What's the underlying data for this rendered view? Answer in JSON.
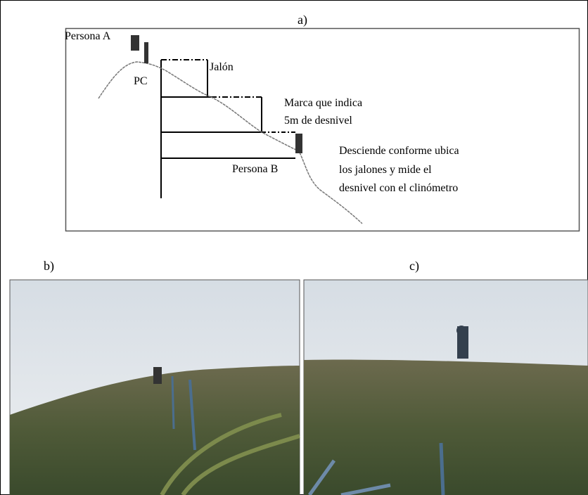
{
  "panel_a": {
    "label": "a)",
    "annotations": [
      "Persona A",
      "PC",
      "Jalón",
      "Marca que indica",
      "5m de desnivel",
      "Desciende conforme ubica",
      "los jalones y mide el",
      "desnivel con el clinómetro",
      "Persona B"
    ]
  },
  "panel_b": {
    "label": "b)"
  },
  "panel_c": {
    "label": "c)"
  }
}
